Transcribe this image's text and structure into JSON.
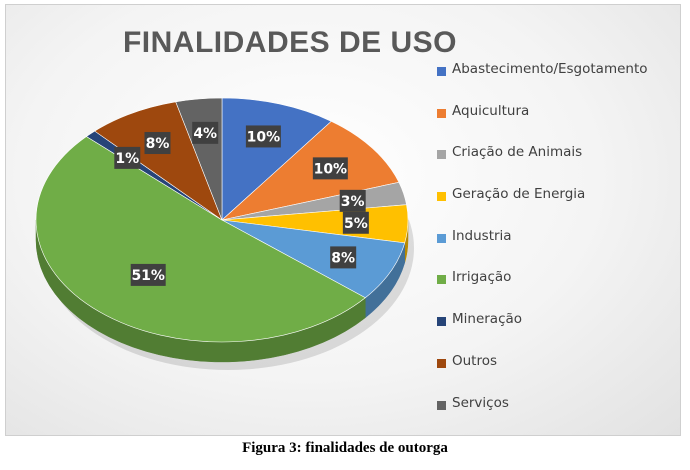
{
  "caption": "Figura 3: finalidades de outorga",
  "chart_data": {
    "type": "pie",
    "title": "FINALIDADES DE USO",
    "legend_position": "right",
    "slices": [
      {
        "name": "Abastecimento/Esgotamento",
        "value": 10,
        "label": "10%",
        "color": "#4472c4"
      },
      {
        "name": "Aquicultura",
        "value": 10,
        "label": "10%",
        "color": "#ed7d31"
      },
      {
        "name": "Criação de Animais",
        "value": 3,
        "label": "3%",
        "color": "#a5a5a5"
      },
      {
        "name": "Geração de Energia",
        "value": 5,
        "label": "5%",
        "color": "#ffc000"
      },
      {
        "name": "Industria",
        "value": 8,
        "label": "8%",
        "color": "#5b9bd5"
      },
      {
        "name": "Irrigação",
        "value": 51,
        "label": "51%",
        "color": "#70ad47"
      },
      {
        "name": "Mineração",
        "value": 1,
        "label": "1%",
        "color": "#264478"
      },
      {
        "name": "Outros",
        "value": 8,
        "label": "8%",
        "color": "#9e480e"
      },
      {
        "name": "Serviços",
        "value": 4,
        "label": "4%",
        "color": "#636363"
      }
    ]
  }
}
